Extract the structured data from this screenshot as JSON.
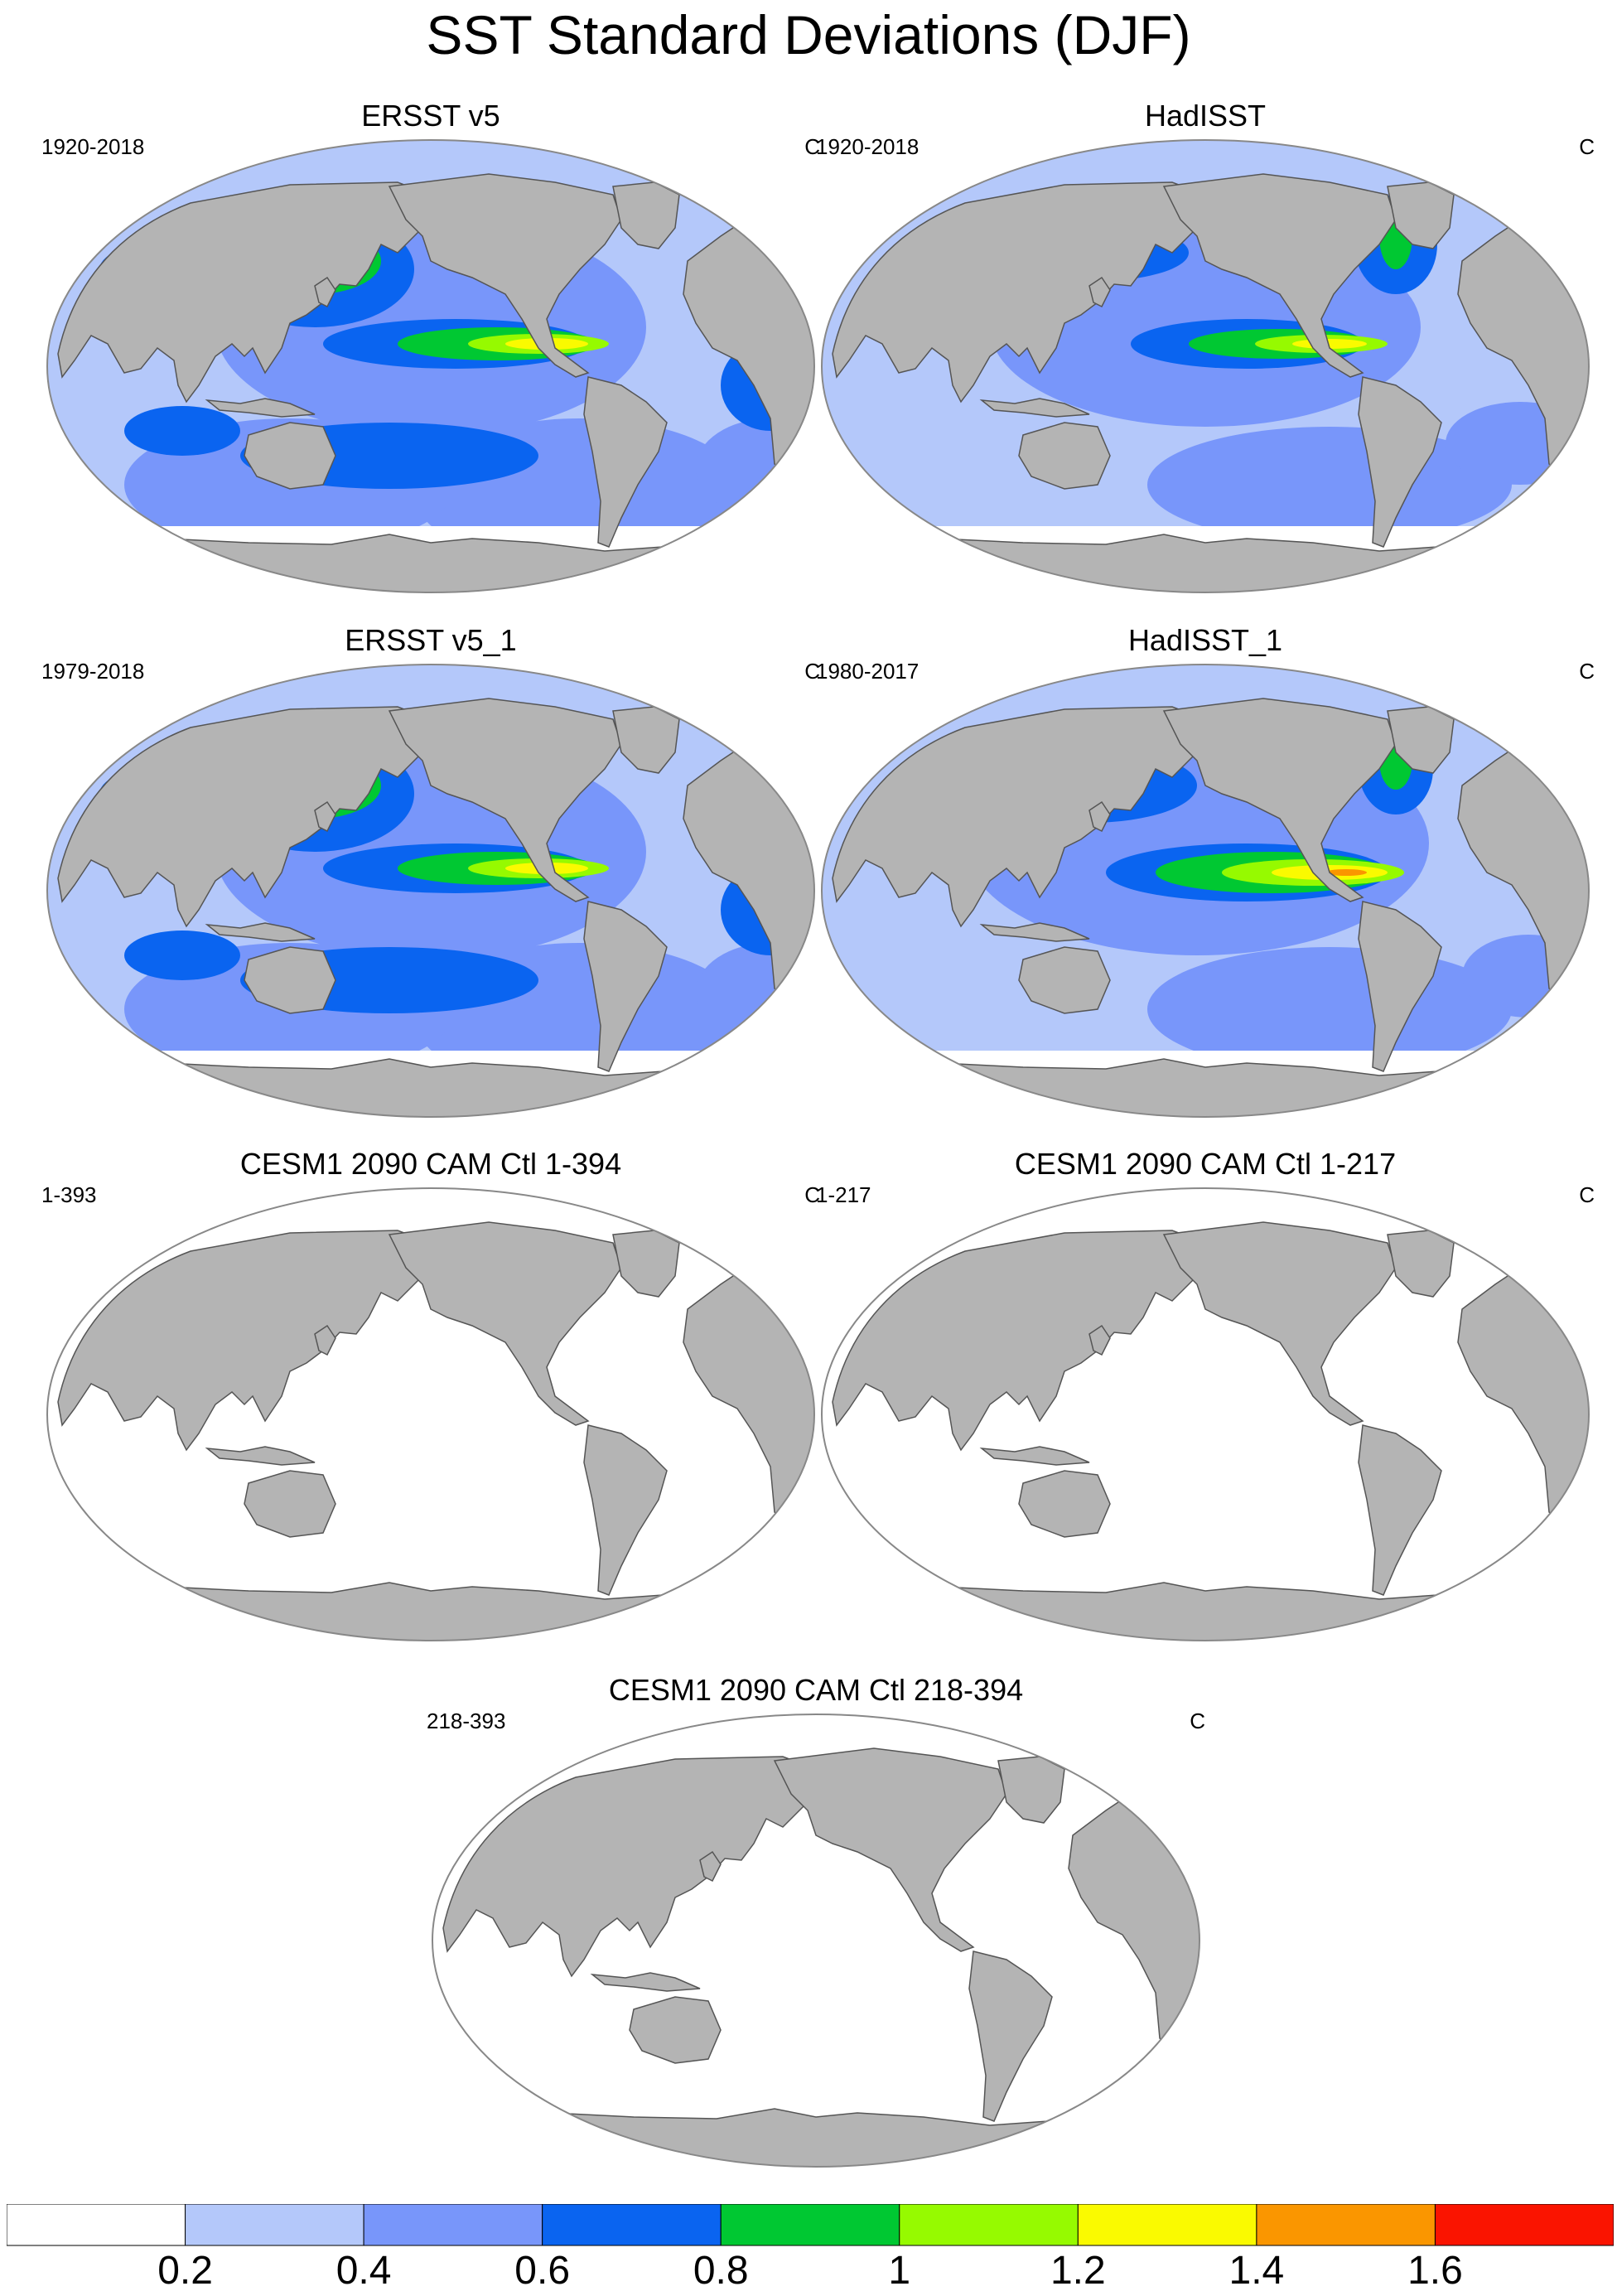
{
  "title": "SST Standard Deviations (DJF)",
  "colors": {
    "land": "#b4b4b4",
    "coast": "#555555",
    "frame": "#888888",
    "levels": [
      "#ffffff",
      "#b4c8fa",
      "#7896fa",
      "#0a64f0",
      "#00c832",
      "#96fa00",
      "#fafa00",
      "#fa9600",
      "#fa1400"
    ]
  },
  "panels": [
    {
      "name": "ersst-v5",
      "title": "ERSST v5",
      "range": "1920-2018",
      "units": "C",
      "style": "obs"
    },
    {
      "name": "hadisst",
      "title": "HadISST",
      "range": "1920-2018",
      "units": "C",
      "style": "obs2"
    },
    {
      "name": "ersst-v5-1",
      "title": "ERSST v5_1",
      "range": "1979-2018",
      "units": "C",
      "style": "obs"
    },
    {
      "name": "hadisst-1",
      "title": "HadISST_1",
      "range": "1980-2017",
      "units": "C",
      "style": "obs3"
    },
    {
      "name": "cesm-1-394",
      "title": "CESM1 2090 CAM Ctl 1-394",
      "range": "1-393",
      "units": "C",
      "style": "model"
    },
    {
      "name": "cesm-1-217",
      "title": "CESM1 2090 CAM Ctl 1-217",
      "range": "1-217",
      "units": "C",
      "style": "model"
    },
    {
      "name": "cesm-218-394",
      "title": "CESM1 2090 CAM Ctl 218-394",
      "range": "218-393",
      "units": "C",
      "style": "model"
    }
  ],
  "colorbar": {
    "tick_labels": [
      "0.2",
      "0.4",
      "0.6",
      "0.8",
      "1",
      "1.2",
      "1.4",
      "1.6"
    ]
  }
}
